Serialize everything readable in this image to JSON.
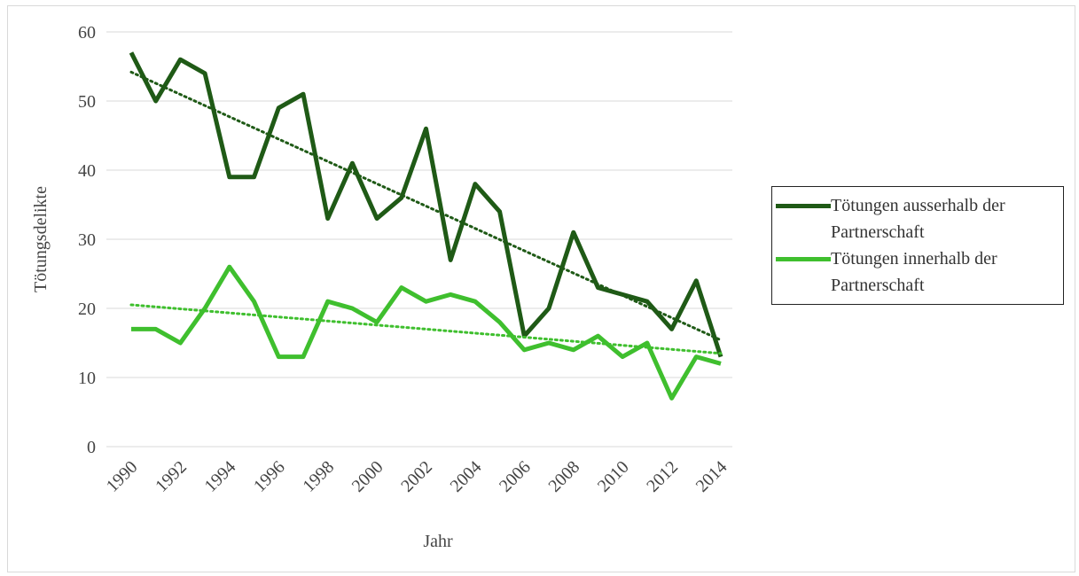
{
  "chart_data": {
    "type": "line",
    "x": [
      1990,
      1991,
      1992,
      1993,
      1994,
      1995,
      1996,
      1997,
      1998,
      1999,
      2000,
      2001,
      2002,
      2003,
      2004,
      2005,
      2006,
      2007,
      2008,
      2009,
      2010,
      2011,
      2012,
      2013,
      2014
    ],
    "series": [
      {
        "name": "Tötungen ausserhalb der Partnerschaft",
        "color": "#1f5a16",
        "trendline": "linear",
        "values": [
          57,
          50,
          56,
          54,
          39,
          39,
          49,
          51,
          33,
          41,
          33,
          36,
          46,
          27,
          38,
          34,
          16,
          20,
          31,
          23,
          22,
          21,
          17,
          24,
          13
        ]
      },
      {
        "name": "Tötungen innerhalb der Partnerschaft",
        "color": "#3fbf2e",
        "trendline": "linear",
        "values": [
          17,
          17,
          15,
          20,
          26,
          21,
          13,
          13,
          21,
          20,
          18,
          23,
          21,
          22,
          21,
          18,
          14,
          15,
          14,
          16,
          13,
          15,
          7,
          13,
          12
        ]
      }
    ],
    "xlabel": "Jahr",
    "ylabel": "Tötungsdelikte",
    "xlim": [
      1990,
      2014
    ],
    "xticks": [
      1990,
      1992,
      1994,
      1996,
      1998,
      2000,
      2002,
      2004,
      2006,
      2008,
      2010,
      2012,
      2014
    ],
    "ylim": [
      0,
      60
    ],
    "yticks": [
      0,
      10,
      20,
      30,
      40,
      50,
      60
    ],
    "grid": true,
    "legend": "right"
  }
}
